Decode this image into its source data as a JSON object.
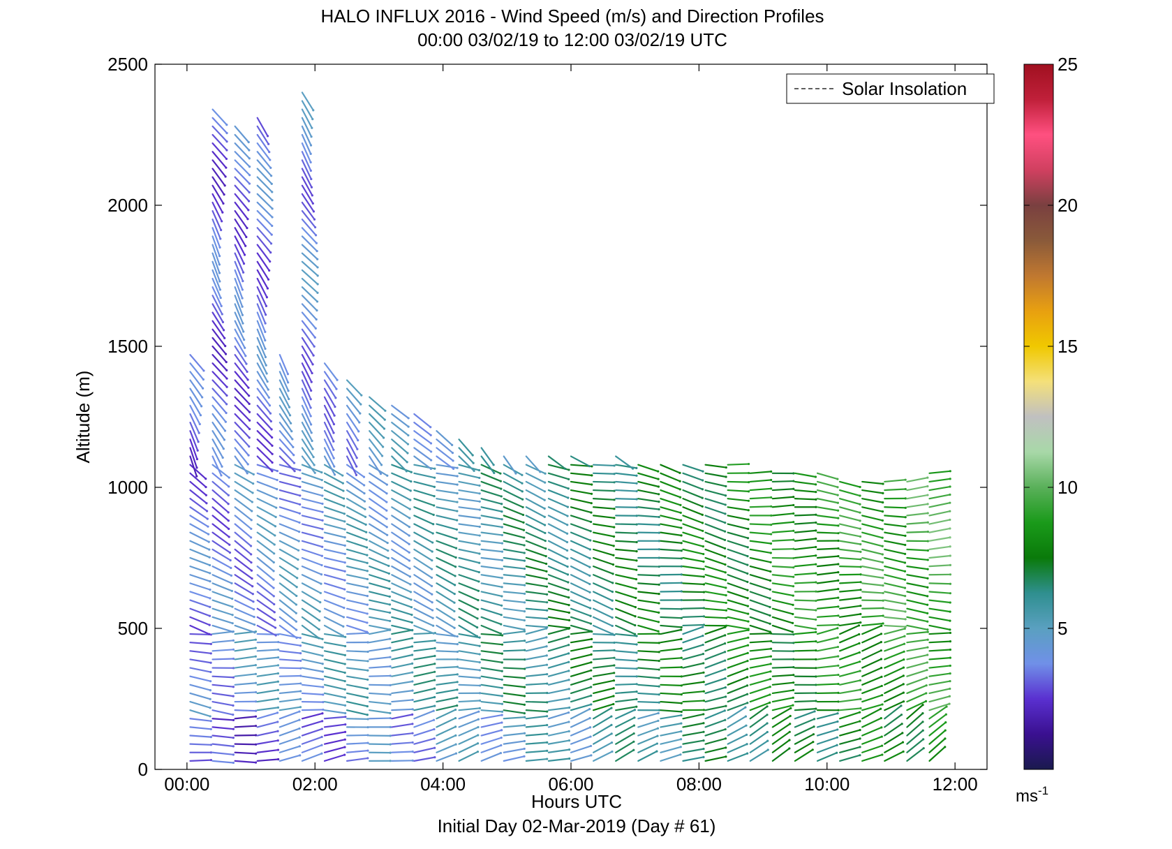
{
  "chart_data": {
    "type": "vector-profile",
    "title": "HALO INFLUX 2016 - Wind Speed (m/s) and Direction Profiles",
    "subtitle": "00:00 03/02/19 to 12:00 03/02/19  UTC",
    "xlabel": "Hours UTC",
    "footer": "Initial Day 02-Mar-2019 (Day # 61)",
    "ylabel": "Altitude (m)",
    "xlim": [
      -0.5,
      12.5
    ],
    "ylim": [
      0,
      2500
    ],
    "x_ticks": [
      0,
      2,
      4,
      6,
      8,
      10,
      12
    ],
    "x_tick_labels": [
      "00:00",
      "02:00",
      "04:00",
      "06:00",
      "08:00",
      "10:00",
      "12:00"
    ],
    "y_ticks": [
      0,
      500,
      1000,
      1500,
      2000,
      2500
    ],
    "y_tick_labels": [
      "0",
      "500",
      "1000",
      "1500",
      "2000",
      "2500"
    ],
    "legend": {
      "entries": [
        "Solar Insolation"
      ],
      "line_style": "dashed",
      "position": "top-right"
    },
    "colorbar": {
      "range": [
        0,
        25
      ],
      "ticks": [
        5,
        10,
        15,
        20,
        25
      ],
      "tick_labels": [
        "5",
        "10",
        "15",
        "20",
        "25"
      ],
      "unit_label": "ms",
      "unit_exponent": "-1",
      "colors": [
        "#1a1a4e",
        "#3a1090",
        "#5a30d0",
        "#7090e8",
        "#5aa0c0",
        "#2f8f8f",
        "#0a7a0a",
        "#1a9a1a",
        "#5ab05a",
        "#a8d8a8",
        "#c0c0c0",
        "#f4e07a",
        "#f0c800",
        "#e8a010",
        "#c07830",
        "#8a5a3a",
        "#7a4040",
        "#d04060",
        "#ff5080",
        "#c0203a",
        "#a01020"
      ]
    },
    "profile_times": [
      0.05,
      0.4,
      0.75,
      1.1,
      1.45,
      1.8,
      2.15,
      2.5,
      2.85,
      3.2,
      3.55,
      3.9,
      4.25,
      4.6,
      4.95,
      5.3,
      5.65,
      6.0,
      6.35,
      6.7,
      7.05,
      7.4,
      7.75,
      8.1,
      8.45,
      8.8,
      9.15,
      9.5,
      9.85,
      10.2,
      10.55,
      10.9,
      11.25,
      11.6
    ],
    "profile_tops": [
      1480,
      2350,
      2300,
      2330,
      1490,
      2400,
      1440,
      1400,
      1320,
      1290,
      1260,
      1210,
      1180,
      1160,
      1130,
      1120,
      1110,
      1110,
      1100,
      1120,
      1090,
      1080,
      1080,
      1080,
      1080,
      1070,
      1060,
      1060,
      1050,
      1040,
      1030,
      1030,
      1020,
      1060
    ],
    "altitude_step": 30,
    "wind_field": {
      "layers": [
        {
          "max_altitude": 200,
          "speed_start": 2.5,
          "speed_end": 8.0,
          "direction_start": 85,
          "direction_end": 60
        },
        {
          "max_altitude": 500,
          "speed_start": 4.0,
          "speed_end": 9.0,
          "direction_start": 95,
          "direction_end": 75
        },
        {
          "max_altitude": 1100,
          "speed_start": 3.5,
          "speed_end": 9.5,
          "direction_start": 120,
          "direction_end": 90
        },
        {
          "max_altitude": 2500,
          "speed_start": 3.0,
          "speed_end": 8.5,
          "direction_start": 150,
          "direction_end": 110
        }
      ]
    }
  }
}
